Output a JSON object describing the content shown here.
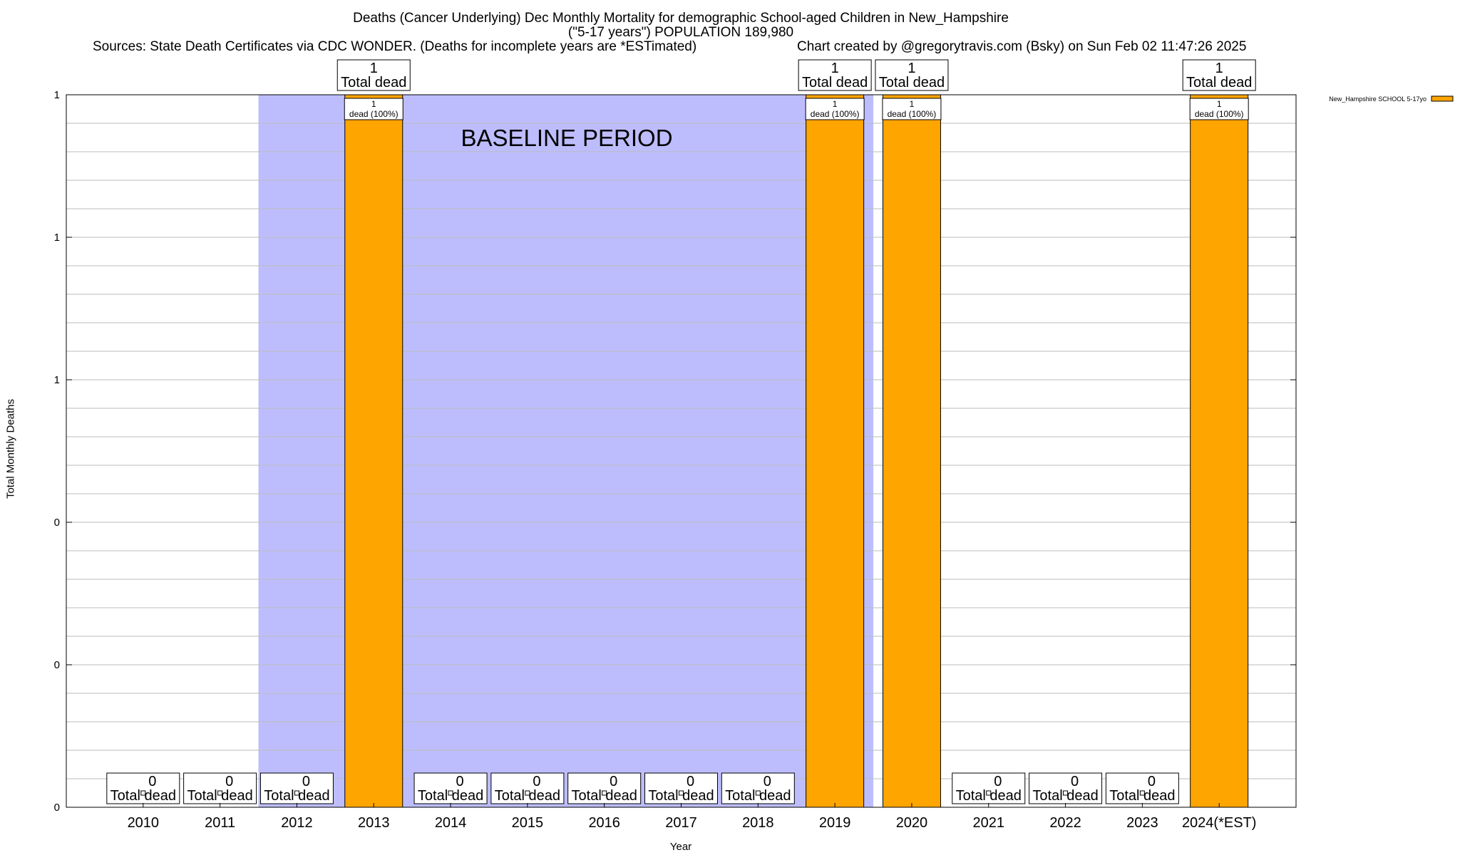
{
  "header": {
    "title_line1": "Deaths (Cancer Underlying) Dec Monthly Mortality for demographic School-aged Children in New_Hampshire",
    "title_line2": "(\"5-17 years\") POPULATION 189,980",
    "sources": "Sources: State Death Certificates via CDC WONDER. (Deaths for incomplete years are *ESTimated)",
    "credit": "Chart created by @gregorytravis.com (Bsky) on Sun Feb 02 11:47:26 2025"
  },
  "chart_data": {
    "type": "bar",
    "title": "Deaths (Cancer Underlying) Dec Monthly Mortality for demographic School-aged Children in New_Hampshire",
    "xlabel": "Year",
    "ylabel": "Total Monthly Deaths",
    "categories": [
      "2010",
      "2011",
      "2012",
      "2013",
      "2014",
      "2015",
      "2016",
      "2017",
      "2018",
      "2019",
      "2020",
      "2021",
      "2022",
      "2023",
      "2024(*EST)"
    ],
    "series": [
      {
        "name": "New_Hampshire SCHOOL 5-17yo",
        "color": "#ffa500",
        "values": [
          0,
          0,
          0,
          1,
          0,
          0,
          0,
          0,
          0,
          1,
          1,
          0,
          0,
          0,
          1
        ]
      }
    ],
    "total_labels": [
      "Total dead",
      "Total dead",
      "Total dead",
      "Total dead",
      "Total dead",
      "Total dead",
      "Total dead",
      "Total dead",
      "Total dead",
      "Total dead",
      "Total dead",
      "Total dead",
      "Total dead",
      "Total dead",
      "Total dead"
    ],
    "bar_labels": [
      null,
      null,
      null,
      "dead (100%)",
      null,
      null,
      null,
      null,
      null,
      "dead (100%)",
      "dead (100%)",
      null,
      null,
      null,
      "dead (100%)"
    ],
    "ylim": [
      0,
      1
    ],
    "y_tick_values": [
      0,
      0.2,
      0.4,
      0.6,
      0.8,
      1.0
    ],
    "y_tick_labels": [
      "0",
      "0",
      "0",
      "1",
      "1",
      "1"
    ],
    "baseline_period": {
      "label": "BASELINE PERIOD",
      "from": "2012",
      "to": "2019",
      "color": "#bdbdfe"
    },
    "grid": true,
    "legend_position": "top-right"
  }
}
